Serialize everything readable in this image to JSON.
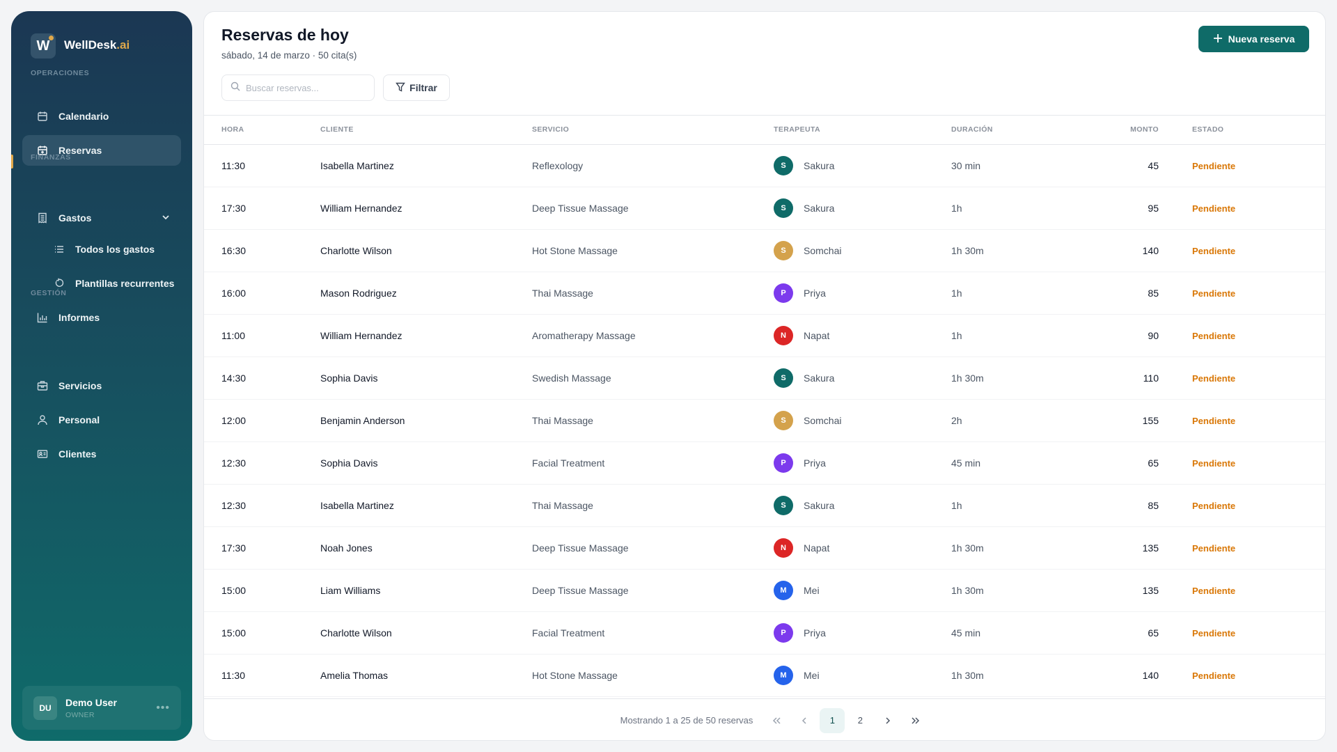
{
  "sidebar": {
    "brand": "WellDesk",
    "brand_suffix": ".ai",
    "logo_letter": "W",
    "sections": {
      "operaciones": "OPERACIONES",
      "finanzas": "FINANZAS",
      "gestion": "GESTIÓN"
    },
    "items": {
      "calendario": "Calendario",
      "reservas": "Reservas",
      "gastos": "Gastos",
      "todos_gastos": "Todos los gastos",
      "plantillas": "Plantillas recurrentes",
      "informes": "Informes",
      "servicios": "Servicios",
      "personal": "Personal",
      "clientes": "Clientes"
    },
    "active": "Reservas",
    "user": {
      "initials": "DU",
      "name": "Demo User",
      "role": "OWNER"
    }
  },
  "header": {
    "title": "Reservas de hoy",
    "subtitle": "sábado, 14 de marzo · 50 cita(s)",
    "new_button": "Nueva reserva",
    "search_placeholder": "Buscar reservas...",
    "filter_button": "Filtrar"
  },
  "table": {
    "columns": [
      "HORA",
      "CLIENTE",
      "SERVICIO",
      "TERAPEUTA",
      "DURACIÓN",
      "MONTO",
      "ESTADO"
    ],
    "rows": [
      {
        "hora": "11:30",
        "cliente": "Isabella Martinez",
        "servicio": "Reflexology",
        "terapeuta": "Sakura",
        "inicial": "S",
        "color": "#0f6b68",
        "duracion": "30 min",
        "monto": "45",
        "estado": "Pendiente"
      },
      {
        "hora": "17:30",
        "cliente": "William Hernandez",
        "servicio": "Deep Tissue Massage",
        "terapeuta": "Sakura",
        "inicial": "S",
        "color": "#0f6b68",
        "duracion": "1h",
        "monto": "95",
        "estado": "Pendiente"
      },
      {
        "hora": "16:30",
        "cliente": "Charlotte Wilson",
        "servicio": "Hot Stone Massage",
        "terapeuta": "Somchai",
        "inicial": "S",
        "color": "#d4a24c",
        "duracion": "1h 30m",
        "monto": "140",
        "estado": "Pendiente"
      },
      {
        "hora": "16:00",
        "cliente": "Mason Rodriguez",
        "servicio": "Thai Massage",
        "terapeuta": "Priya",
        "inicial": "P",
        "color": "#7c3aed",
        "duracion": "1h",
        "monto": "85",
        "estado": "Pendiente"
      },
      {
        "hora": "11:00",
        "cliente": "William Hernandez",
        "servicio": "Aromatherapy Massage",
        "terapeuta": "Napat",
        "inicial": "N",
        "color": "#dc2626",
        "duracion": "1h",
        "monto": "90",
        "estado": "Pendiente"
      },
      {
        "hora": "14:30",
        "cliente": "Sophia Davis",
        "servicio": "Swedish Massage",
        "terapeuta": "Sakura",
        "inicial": "S",
        "color": "#0f6b68",
        "duracion": "1h 30m",
        "monto": "110",
        "estado": "Pendiente"
      },
      {
        "hora": "12:00",
        "cliente": "Benjamin Anderson",
        "servicio": "Thai Massage",
        "terapeuta": "Somchai",
        "inicial": "S",
        "color": "#d4a24c",
        "duracion": "2h",
        "monto": "155",
        "estado": "Pendiente"
      },
      {
        "hora": "12:30",
        "cliente": "Sophia Davis",
        "servicio": "Facial Treatment",
        "terapeuta": "Priya",
        "inicial": "P",
        "color": "#7c3aed",
        "duracion": "45 min",
        "monto": "65",
        "estado": "Pendiente"
      },
      {
        "hora": "12:30",
        "cliente": "Isabella Martinez",
        "servicio": "Thai Massage",
        "terapeuta": "Sakura",
        "inicial": "S",
        "color": "#0f6b68",
        "duracion": "1h",
        "monto": "85",
        "estado": "Pendiente"
      },
      {
        "hora": "17:30",
        "cliente": "Noah Jones",
        "servicio": "Deep Tissue Massage",
        "terapeuta": "Napat",
        "inicial": "N",
        "color": "#dc2626",
        "duracion": "1h 30m",
        "monto": "135",
        "estado": "Pendiente"
      },
      {
        "hora": "15:00",
        "cliente": "Liam Williams",
        "servicio": "Deep Tissue Massage",
        "terapeuta": "Mei",
        "inicial": "M",
        "color": "#2563eb",
        "duracion": "1h 30m",
        "monto": "135",
        "estado": "Pendiente"
      },
      {
        "hora": "15:00",
        "cliente": "Charlotte Wilson",
        "servicio": "Facial Treatment",
        "terapeuta": "Priya",
        "inicial": "P",
        "color": "#7c3aed",
        "duracion": "45 min",
        "monto": "65",
        "estado": "Pendiente"
      },
      {
        "hora": "11:30",
        "cliente": "Amelia Thomas",
        "servicio": "Hot Stone Massage",
        "terapeuta": "Mei",
        "inicial": "M",
        "color": "#2563eb",
        "duracion": "1h 30m",
        "monto": "140",
        "estado": "Pendiente"
      }
    ]
  },
  "pagination": {
    "info": "Mostrando 1 a 25 de 50 reservas",
    "pages": [
      "1",
      "2"
    ],
    "current": "1"
  },
  "colors": {
    "accent": "#0f6b68",
    "gold": "#e0a84a",
    "pending": "#d97706"
  }
}
